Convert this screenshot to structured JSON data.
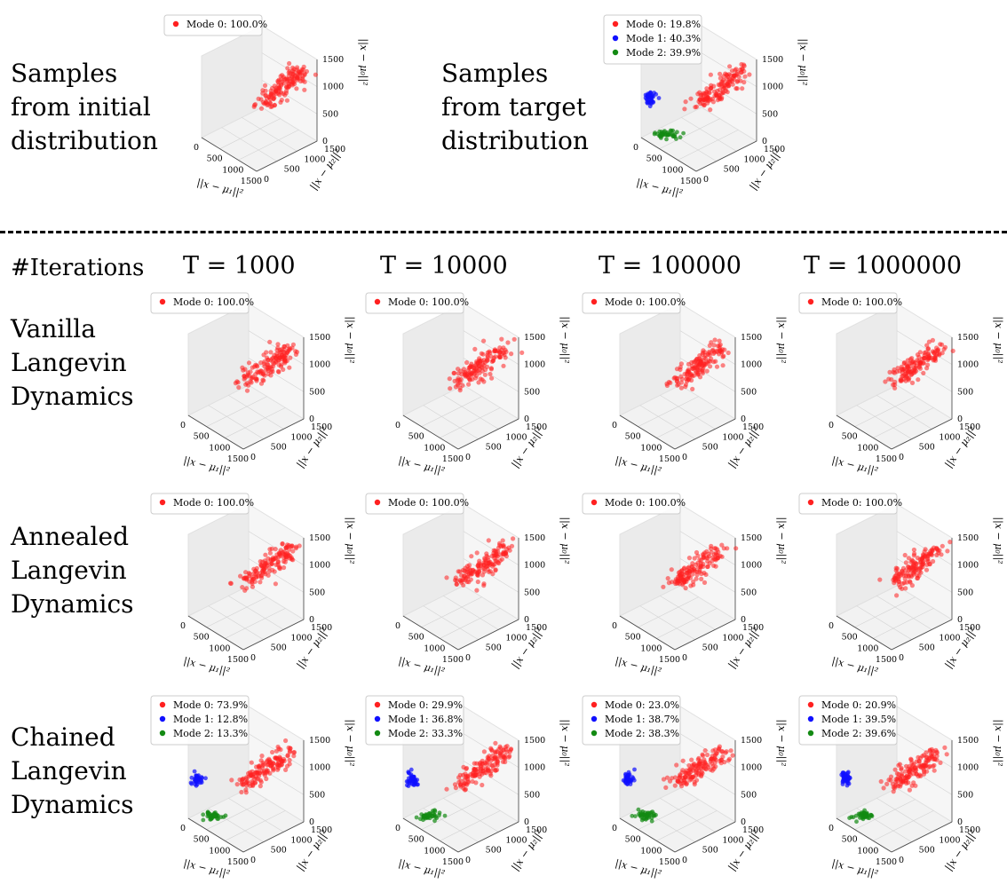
{
  "row_labels": {
    "initial": [
      "Samples",
      "from initial",
      "distribution"
    ],
    "target": [
      "Samples",
      "from target",
      "distribution"
    ],
    "iterations": "#Iterations",
    "vanilla": [
      "Vanilla",
      "Langevin",
      "Dynamics"
    ],
    "annealed": [
      "Annealed",
      "Langevin",
      "Dynamics"
    ],
    "chained": [
      "Chained",
      "Langevin",
      "Dynamics"
    ]
  },
  "column_labels": [
    "T = 1000",
    "T = 10000",
    "T = 100000",
    "T = 1000000"
  ],
  "axes": {
    "x_ticks": [
      "0",
      "500",
      "1000",
      "1500"
    ],
    "y_ticks": [
      "0",
      "500",
      "1000",
      "1500"
    ],
    "z_ticks": [
      "0",
      "500",
      "1000",
      "1500"
    ],
    "x_label": "||x − μ₁||²",
    "y_label": "||x − μ₂||²",
    "z_label": "||x − μ₀||²"
  },
  "colors": {
    "mode0": "#ff2020",
    "mode1": "#1010ff",
    "mode2": "#138a13"
  },
  "chart_data": [
    {
      "id": "initial",
      "type": "scatter",
      "legend": [
        "Mode 0: 100.0%"
      ],
      "modes": [
        100.0
      ],
      "xlim": [
        0,
        1500
      ],
      "ylim": [
        0,
        1500
      ],
      "zlim": [
        0,
        1500
      ],
      "grid": true,
      "legend_position": "top"
    },
    {
      "id": "target",
      "type": "scatter",
      "legend": [
        "Mode 0: 19.8%",
        "Mode 1: 40.3%",
        "Mode 2: 39.9%"
      ],
      "modes": [
        19.8,
        40.3,
        39.9
      ],
      "xlim": [
        0,
        1500
      ],
      "ylim": [
        0,
        1500
      ],
      "zlim": [
        0,
        1500
      ],
      "grid": true,
      "legend_position": "top-left"
    },
    {
      "id": "vanilla-1000",
      "type": "scatter",
      "legend": [
        "Mode 0: 100.0%"
      ],
      "modes": [
        100.0
      ],
      "xlim": [
        0,
        1500
      ],
      "ylim": [
        0,
        1500
      ],
      "zlim": [
        0,
        1500
      ],
      "grid": true
    },
    {
      "id": "vanilla-10000",
      "type": "scatter",
      "legend": [
        "Mode 0: 100.0%"
      ],
      "modes": [
        100.0
      ],
      "xlim": [
        0,
        1500
      ],
      "ylim": [
        0,
        1500
      ],
      "zlim": [
        0,
        1500
      ],
      "grid": true
    },
    {
      "id": "vanilla-100000",
      "type": "scatter",
      "legend": [
        "Mode 0: 100.0%"
      ],
      "modes": [
        100.0
      ],
      "xlim": [
        0,
        1500
      ],
      "ylim": [
        0,
        1500
      ],
      "zlim": [
        0,
        1500
      ],
      "grid": true
    },
    {
      "id": "vanilla-1000000",
      "type": "scatter",
      "legend": [
        "Mode 0: 100.0%"
      ],
      "modes": [
        100.0
      ],
      "xlim": [
        0,
        1500
      ],
      "ylim": [
        0,
        1500
      ],
      "zlim": [
        0,
        1500
      ],
      "grid": true
    },
    {
      "id": "annealed-1000",
      "type": "scatter",
      "legend": [
        "Mode 0: 100.0%"
      ],
      "modes": [
        100.0
      ],
      "xlim": [
        0,
        1500
      ],
      "ylim": [
        0,
        1500
      ],
      "zlim": [
        0,
        1500
      ],
      "grid": true
    },
    {
      "id": "annealed-10000",
      "type": "scatter",
      "legend": [
        "Mode 0: 100.0%"
      ],
      "modes": [
        100.0
      ],
      "xlim": [
        0,
        1500
      ],
      "ylim": [
        0,
        1500
      ],
      "zlim": [
        0,
        1500
      ],
      "grid": true
    },
    {
      "id": "annealed-100000",
      "type": "scatter",
      "legend": [
        "Mode 0: 100.0%"
      ],
      "modes": [
        100.0
      ],
      "xlim": [
        0,
        1500
      ],
      "ylim": [
        0,
        1500
      ],
      "zlim": [
        0,
        1500
      ],
      "grid": true
    },
    {
      "id": "annealed-1000000",
      "type": "scatter",
      "legend": [
        "Mode 0: 100.0%"
      ],
      "modes": [
        100.0
      ],
      "xlim": [
        0,
        1500
      ],
      "ylim": [
        0,
        1500
      ],
      "zlim": [
        0,
        1500
      ],
      "grid": true
    },
    {
      "id": "chained-1000",
      "type": "scatter",
      "legend": [
        "Mode 0: 73.9%",
        "Mode 1: 12.8%",
        "Mode 2: 13.3%"
      ],
      "modes": [
        73.9,
        12.8,
        13.3
      ],
      "xlim": [
        0,
        1500
      ],
      "ylim": [
        0,
        1500
      ],
      "zlim": [
        0,
        1500
      ],
      "grid": true
    },
    {
      "id": "chained-10000",
      "type": "scatter",
      "legend": [
        "Mode 0: 29.9%",
        "Mode 1: 36.8%",
        "Mode 2: 33.3%"
      ],
      "modes": [
        29.9,
        36.8,
        33.3
      ],
      "xlim": [
        0,
        1500
      ],
      "ylim": [
        0,
        1500
      ],
      "zlim": [
        0,
        1500
      ],
      "grid": true
    },
    {
      "id": "chained-100000",
      "type": "scatter",
      "legend": [
        "Mode 0: 23.0%",
        "Mode 1: 38.7%",
        "Mode 2: 38.3%"
      ],
      "modes": [
        23.0,
        38.7,
        38.3
      ],
      "xlim": [
        0,
        1500
      ],
      "ylim": [
        0,
        1500
      ],
      "zlim": [
        0,
        1500
      ],
      "grid": true
    },
    {
      "id": "chained-1000000",
      "type": "scatter",
      "legend": [
        "Mode 0: 20.9%",
        "Mode 1: 39.5%",
        "Mode 2: 39.6%"
      ],
      "modes": [
        20.9,
        39.5,
        39.6
      ],
      "xlim": [
        0,
        1500
      ],
      "ylim": [
        0,
        1500
      ],
      "zlim": [
        0,
        1500
      ],
      "grid": true
    }
  ]
}
